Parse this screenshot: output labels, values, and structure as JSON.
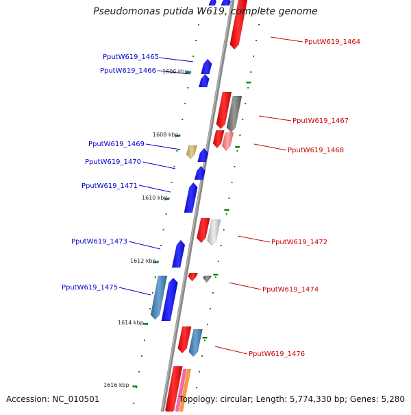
{
  "title": "Pseudomonas putida W619, complete genome",
  "footer": {
    "accession": "Accession: NC_010501",
    "summary": "Topology: circular; Length: 5,774,330 bp; Genes: 5,280"
  },
  "scale_labels": [
    "1606 kbp",
    "1608 kbp",
    "1610 kbp",
    "1612 kbp",
    "1614 kbp",
    "1616 kbp"
  ],
  "left_genes": [
    "PputW619_1465",
    "PputW619_1466",
    "PputW619_1469",
    "PputW619_1470",
    "PputW619_1471",
    "PputW619_1473",
    "PputW619_1475"
  ],
  "right_genes": [
    "PputW619_1464",
    "PputW619_1467",
    "PputW619_1468",
    "PputW619_1472",
    "PputW619_1474",
    "PputW619_1476"
  ],
  "colors": {
    "left_label": "#0000cc",
    "right_label": "#cc0000",
    "blue": "#1a1aff",
    "red": "#ee1111",
    "steel": "#4a86b8",
    "gray": "#777777",
    "lightgray": "#cccccc",
    "pink": "#f08080",
    "khaki": "#c4b46a",
    "tick": "#1a7a1a",
    "backbone": "#888888"
  }
}
